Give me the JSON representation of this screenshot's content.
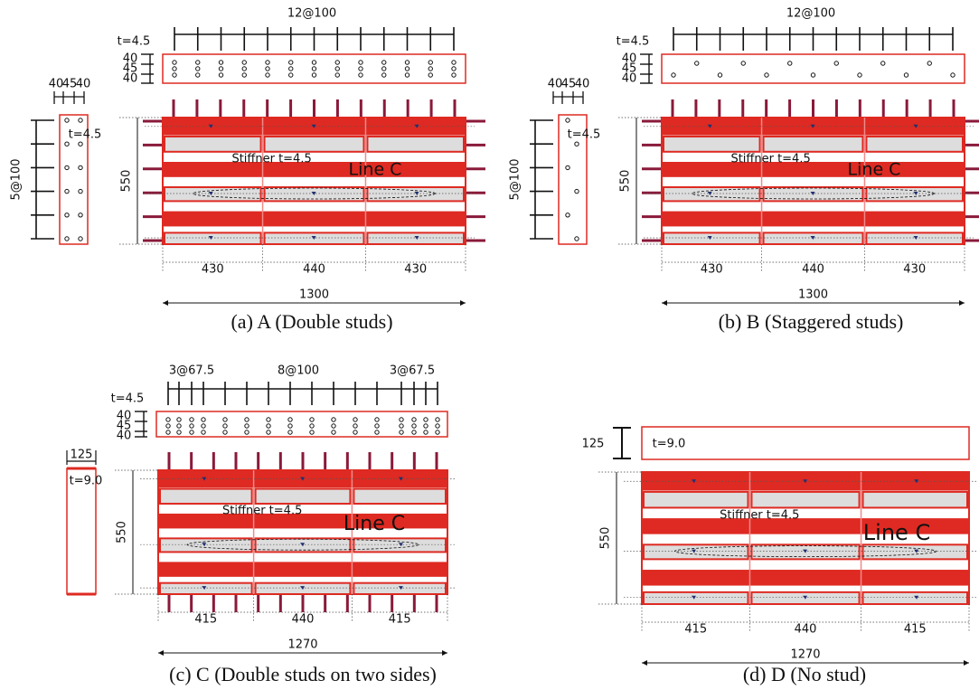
{
  "panels": [
    {
      "caption": "(a)  A (Double studs)",
      "top_spacing": [
        "12@100"
      ],
      "thickness": "t=4.5",
      "strip_dims": [
        "40",
        "45",
        "40"
      ],
      "side_dims": [
        "40",
        "45",
        "40"
      ],
      "side_spacing": "5@100",
      "side_thickness": "t=4.5",
      "height": "550",
      "stiffener": "Stiffner t=4.5",
      "line": "Line C",
      "widths": [
        "430",
        "440",
        "430"
      ],
      "total": "1300"
    },
    {
      "caption": "(b) B (Staggered studs)",
      "top_spacing": [
        "12@100"
      ],
      "thickness": "t=4.5",
      "strip_dims": [
        "40",
        "45",
        "40"
      ],
      "side_dims": [
        "40",
        "45",
        "40"
      ],
      "side_spacing": "5@100",
      "side_thickness": "t=4.5",
      "height": "550",
      "stiffener": "Stiffner t=4.5",
      "line": "Line C",
      "widths": [
        "430",
        "440",
        "430"
      ],
      "total": "1300"
    },
    {
      "caption": "(c)  C (Double studs  on two sides)",
      "top_spacing": [
        "3@67.5",
        "8@100",
        "3@67.5"
      ],
      "thickness": "t=4.5",
      "strip_dims": [
        "40",
        "45",
        "40"
      ],
      "side_width": "125",
      "side_thickness": "t=9.0",
      "height": "550",
      "stiffener": "Stiffner t=4.5",
      "line": "Line C",
      "widths": [
        "415",
        "440",
        "415"
      ],
      "total": "1270"
    },
    {
      "caption": "(d) D (No stud)",
      "strip_width": "125",
      "thickness": "t=9.0",
      "height": "550",
      "stiffener": "Stiffner t=4.5",
      "line": "Line C",
      "widths": [
        "415",
        "440",
        "415"
      ],
      "total": "1270"
    }
  ]
}
